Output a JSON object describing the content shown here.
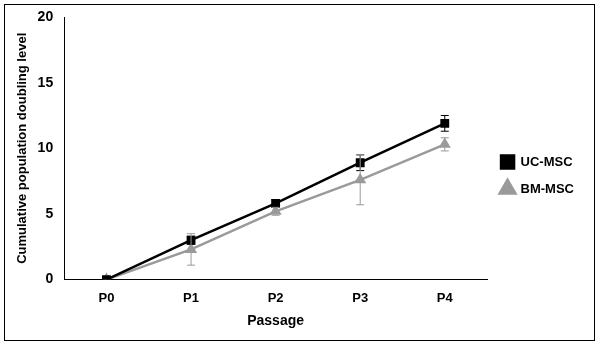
{
  "chart_data": {
    "type": "line",
    "x_label": "Passage",
    "y_label": "Cumulative population doubling level",
    "categories": [
      "P0",
      "P1",
      "P2",
      "P3",
      "P4"
    ],
    "series": [
      {
        "name": "UC-MSC",
        "color": "#000000",
        "marker": "square",
        "values": [
          0,
          3.0,
          5.8,
          8.9,
          11.9
        ],
        "errors": [
          0,
          0.3,
          0.3,
          0.6,
          0.6
        ]
      },
      {
        "name": "BM-MSC",
        "color": "#9a9a9a",
        "marker": "triangle",
        "values": [
          0,
          2.3,
          5.2,
          7.6,
          10.3
        ],
        "errors": [
          0,
          1.2,
          0.3,
          1.9,
          0.5
        ]
      }
    ],
    "ylim": [
      0,
      20
    ],
    "yticks": [
      0,
      5,
      10,
      15,
      20
    ],
    "grid": false,
    "legend": "right"
  }
}
